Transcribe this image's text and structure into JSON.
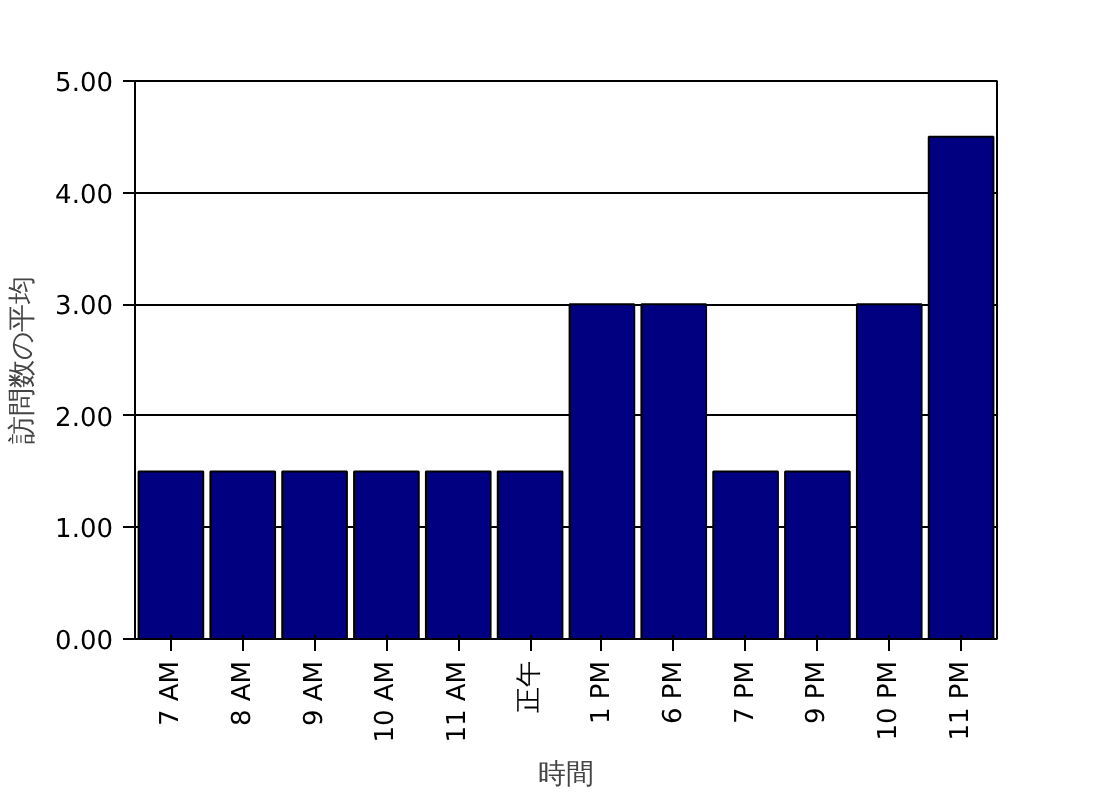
{
  "chart_data": {
    "type": "bar",
    "xlabel": "時間",
    "ylabel": "訪問数の平均",
    "categories": [
      "7 AM",
      "8 AM",
      "9 AM",
      "10 AM",
      "11 AM",
      "正午",
      "1 PM",
      "6 PM",
      "7 PM",
      "9 PM",
      "10 PM",
      "11 PM"
    ],
    "values": [
      1.5,
      1.5,
      1.5,
      1.5,
      1.5,
      1.5,
      3.0,
      3.0,
      1.5,
      1.5,
      3.0,
      4.5
    ],
    "color": "#000080",
    "ylim": [
      0,
      5
    ],
    "yticks": [
      {
        "value": 0,
        "label": "0.00"
      },
      {
        "value": 1,
        "label": "1.00"
      },
      {
        "value": 2,
        "label": "2.00"
      },
      {
        "value": 3,
        "label": "3.00"
      },
      {
        "value": 4,
        "label": "4.00"
      },
      {
        "value": 5,
        "label": "5.00"
      }
    ],
    "grid": "y"
  }
}
